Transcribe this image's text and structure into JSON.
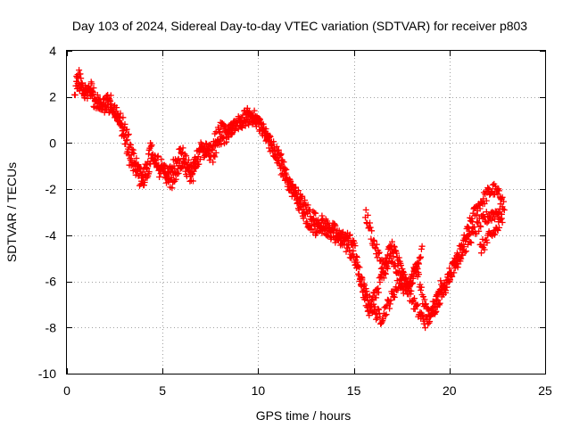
{
  "chart_data": {
    "type": "scatter",
    "title": "Day 103 of 2024, Sidereal Day-to-day VTEC variation (SDTVAR) for receiver p803",
    "xlabel": "GPS time / hours",
    "ylabel": "SDTVAR / TECUs",
    "xlim": [
      0,
      25
    ],
    "ylim": [
      -10,
      4
    ],
    "xticks": [
      0,
      5,
      10,
      15,
      20,
      25
    ],
    "yticks": [
      -10,
      -8,
      -6,
      -4,
      -2,
      0,
      2,
      4
    ],
    "grid": true,
    "marker": "+",
    "color": "#ff0000",
    "series": [
      {
        "x": [
          0.4,
          0.5,
          0.6,
          0.7,
          0.8,
          1.0,
          1.2,
          1.4,
          1.6,
          1.8,
          2.0,
          2.2,
          2.4,
          2.6,
          2.8,
          3.0,
          3.2,
          3.4,
          3.6,
          3.8,
          4.0,
          4.2,
          4.4,
          4.6,
          4.8,
          5.0,
          5.2,
          5.4,
          5.6,
          5.8,
          6.0,
          6.2,
          6.5,
          6.8,
          7.0,
          7.3,
          7.6,
          8.0,
          8.3,
          8.6,
          9.0,
          9.3,
          9.6,
          10.0,
          10.3,
          10.6,
          11.0,
          11.3,
          11.6,
          12.0,
          12.3,
          12.6,
          13.0,
          13.4,
          13.8,
          14.2,
          14.6,
          15.0,
          15.2,
          15.4,
          15.6,
          15.8,
          16.0,
          16.3,
          16.6,
          17.0,
          17.3,
          17.6,
          18.0,
          18.3,
          18.6,
          18.9,
          19.2,
          19.5,
          19.7,
          20.0,
          20.4,
          20.8,
          21.2,
          21.6,
          22.0,
          22.3,
          22.6,
          22.8
        ],
        "y": [
          2.0,
          2.6,
          3.0,
          2.8,
          2.4,
          2.0,
          2.5,
          2.2,
          1.8,
          1.5,
          1.9,
          2.0,
          1.6,
          1.2,
          0.8,
          0.2,
          -0.5,
          -1.0,
          -1.2,
          -1.6,
          -1.4,
          -0.8,
          -0.2,
          -0.8,
          -1.3,
          -1.0,
          -1.5,
          -1.2,
          -0.9,
          -0.5,
          -0.3,
          -0.8,
          -1.2,
          -0.5,
          -0.1,
          -0.3,
          -0.6,
          0.0,
          0.3,
          0.6,
          0.8,
          1.0,
          1.1,
          0.9,
          0.4,
          0.2,
          -0.5,
          -0.9,
          -1.8,
          -2.4,
          -2.9,
          -3.4,
          -3.7,
          -3.6,
          -3.9,
          -4.2,
          -4.0,
          -4.5,
          -5.2,
          -6.0,
          -6.8,
          -7.3,
          -6.8,
          -6.2,
          -5.5,
          -4.8,
          -5.6,
          -6.4,
          -6.0,
          -5.4,
          -6.8,
          -7.5,
          -7.0,
          -6.2,
          -6.4,
          -5.8,
          -5.0,
          -4.2,
          -3.2,
          -2.6,
          -2.2,
          -2.0,
          -2.3,
          -2.1
        ]
      },
      {
        "x": [
          0.5,
          1.0,
          1.5,
          2.0,
          2.5,
          3.0,
          3.5,
          4.0,
          4.5,
          5.0,
          5.5,
          6.0,
          6.5,
          7.0,
          7.5,
          8.0,
          8.5,
          9.0,
          9.5,
          10.0,
          10.5,
          11.0,
          11.5,
          12.0,
          12.5,
          13.0,
          13.5,
          14.0,
          14.5,
          15.0,
          15.3,
          15.6,
          16.0,
          16.4,
          16.8,
          17.2,
          17.6,
          18.0,
          18.4,
          18.8,
          19.2,
          19.6,
          20.0,
          20.5,
          21.0,
          21.5,
          22.0,
          22.5,
          22.9
        ],
        "y": [
          2.5,
          2.2,
          1.8,
          1.6,
          1.4,
          0.8,
          -0.6,
          -1.6,
          -0.6,
          -1.0,
          -1.8,
          -0.8,
          -1.6,
          -0.4,
          -0.2,
          0.6,
          0.5,
          0.9,
          1.3,
          1.0,
          0.2,
          -0.8,
          -1.6,
          -2.2,
          -2.8,
          -3.3,
          -3.5,
          -3.8,
          -4.3,
          -5.0,
          -5.8,
          -6.5,
          -7.2,
          -7.6,
          -7.0,
          -6.3,
          -5.8,
          -6.7,
          -7.4,
          -7.8,
          -7.2,
          -6.5,
          -5.7,
          -5.0,
          -4.2,
          -3.6,
          -3.2,
          -3.0,
          -2.8
        ]
      },
      {
        "x": [
          15.6,
          15.8,
          16.0,
          16.2,
          16.4,
          16.6,
          16.8,
          17.0,
          17.2,
          17.4,
          17.6,
          17.8,
          18.0,
          18.2,
          18.4,
          18.6
        ],
        "y": [
          -3.0,
          -3.6,
          -4.2,
          -4.7,
          -5.1,
          -5.4,
          -4.8,
          -4.4,
          -4.8,
          -5.3,
          -5.8,
          -6.3,
          -6.0,
          -5.5,
          -5.0,
          -4.6
        ]
      },
      {
        "x": [
          21.6,
          21.8,
          22.0,
          22.2,
          22.4,
          22.6,
          22.8
        ],
        "y": [
          -4.6,
          -4.4,
          -4.2,
          -4.0,
          -3.8,
          -3.6,
          -3.3
        ]
      }
    ]
  }
}
